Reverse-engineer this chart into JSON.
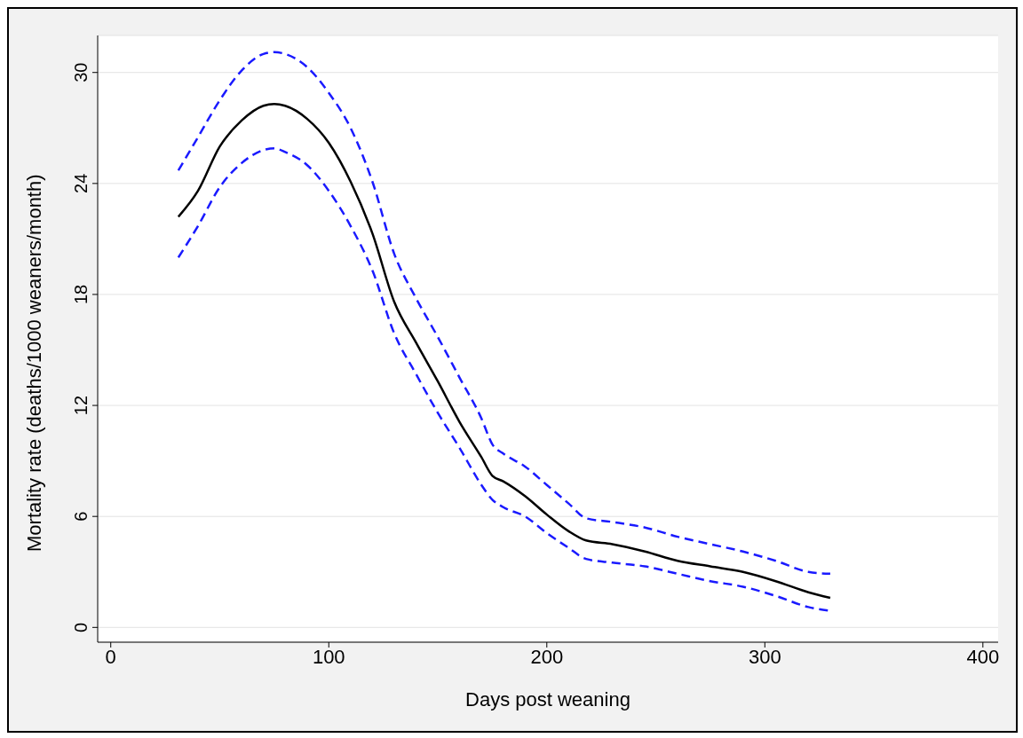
{
  "chart_data": {
    "type": "line",
    "xlabel": "Days post weaning",
    "ylabel": "Mortality rate (deaths/1000 weaners/month)",
    "x": [
      31,
      40,
      50,
      60,
      70,
      75,
      80,
      90,
      100,
      110,
      120,
      130,
      140,
      150,
      160,
      170,
      175,
      180,
      190,
      200,
      210,
      218,
      230,
      245,
      260,
      275,
      290,
      305,
      320,
      330
    ],
    "series": [
      {
        "color": "#000000",
        "line_style": "solid",
        "values": [
          22.2,
          23.6,
          26.0,
          27.4,
          28.2,
          28.3,
          28.2,
          27.5,
          26.2,
          24.1,
          21.3,
          17.6,
          15.4,
          13.3,
          11.1,
          9.2,
          8.2,
          7.9,
          7.1,
          6.1,
          5.2,
          4.7,
          4.5,
          4.1,
          3.6,
          3.3,
          3.0,
          2.5,
          1.9,
          1.6
        ]
      },
      {
        "color": "#1a1aff",
        "line_style": "dashed",
        "values": [
          24.7,
          26.5,
          28.5,
          30.1,
          31.0,
          31.1,
          31.0,
          30.3,
          28.9,
          27.0,
          24.1,
          20.2,
          17.8,
          15.7,
          13.5,
          11.3,
          9.9,
          9.4,
          8.7,
          7.7,
          6.7,
          5.9,
          5.7,
          5.4,
          4.9,
          4.5,
          4.1,
          3.6,
          3.0,
          2.9
        ]
      },
      {
        "color": "#1a1aff",
        "line_style": "dashed",
        "values": [
          20.0,
          21.7,
          23.8,
          25.1,
          25.8,
          25.9,
          25.7,
          25.0,
          23.6,
          21.7,
          19.3,
          15.9,
          13.7,
          11.6,
          9.7,
          7.7,
          6.9,
          6.5,
          6.0,
          5.1,
          4.3,
          3.7,
          3.5,
          3.3,
          2.9,
          2.5,
          2.2,
          1.7,
          1.1,
          0.9
        ]
      }
    ],
    "xlim": [
      -6,
      407
    ],
    "xticks": [
      0,
      100,
      200,
      300,
      400
    ],
    "ylim": [
      -0.8,
      32
    ],
    "yticks": [
      0,
      6,
      12,
      18,
      24,
      30
    ],
    "grid": "y",
    "legend": false,
    "marker": "none"
  }
}
